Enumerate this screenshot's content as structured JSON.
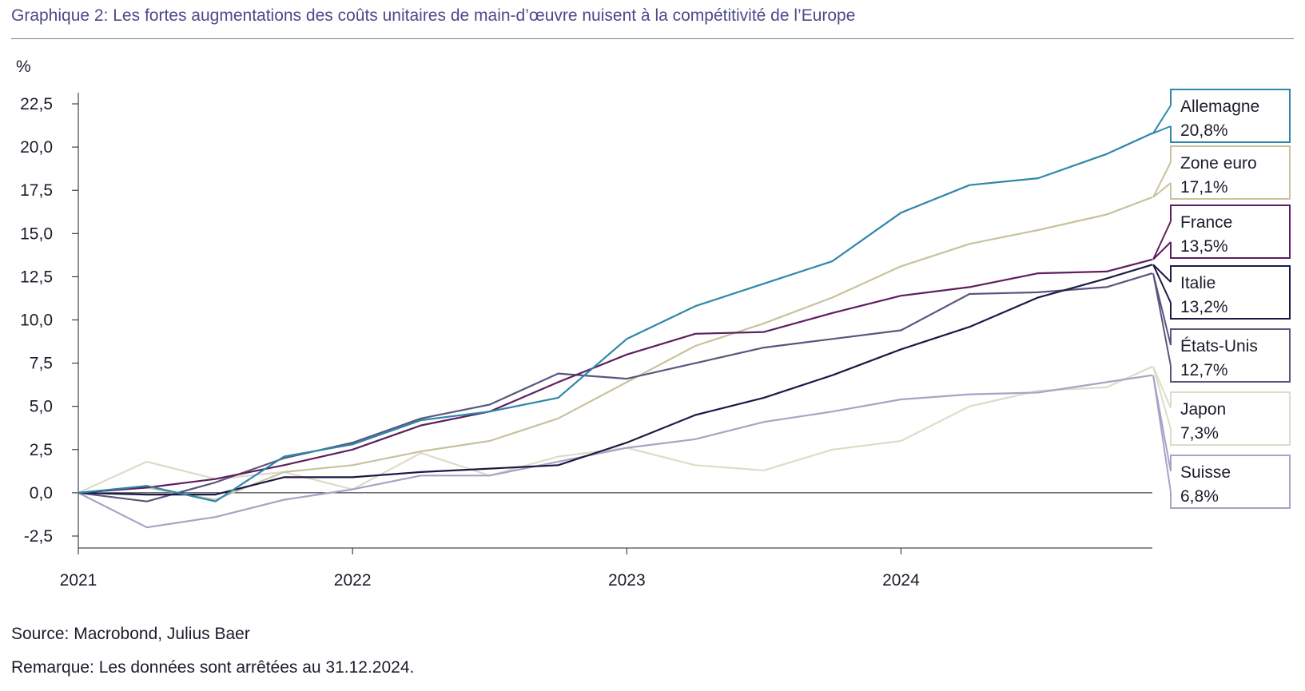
{
  "title": "Graphique 2: Les fortes augmentations des coûts unitaires de main-d’œuvre nuisent à la compétitivité de l’Europe",
  "footer": {
    "source": "Source: Macrobond, Julius Baer",
    "note": "Remarque: Les données sont arrêtées au 31.12.2024."
  },
  "chart_data": {
    "type": "line",
    "ylabel": "%",
    "ylim": [
      -2.5,
      22.5
    ],
    "yticks": [
      "22,5",
      "20,0",
      "17,5",
      "15,0",
      "12,5",
      "10,0",
      "7,5",
      "5,0",
      "2,5",
      "0,0",
      "-2,5"
    ],
    "ytick_values": [
      22.5,
      20.0,
      17.5,
      15.0,
      12.5,
      10.0,
      7.5,
      5.0,
      2.5,
      0.0,
      -2.5
    ],
    "xticks": [
      "2021",
      "2022",
      "2023",
      "2024"
    ],
    "x": [
      "2021-01",
      "2021-04",
      "2021-07",
      "2021-10",
      "2022-01",
      "2022-04",
      "2022-07",
      "2022-10",
      "2023-01",
      "2023-04",
      "2023-07",
      "2023-10",
      "2024-01",
      "2024-04",
      "2024-07",
      "2024-10",
      "2024-12"
    ],
    "grid": false,
    "series": [
      {
        "name": "Allemagne",
        "end_label": "20,8%",
        "color": "#2f86aa",
        "values": [
          0.0,
          0.4,
          -0.5,
          2.1,
          2.8,
          4.2,
          4.7,
          5.5,
          8.9,
          10.8,
          12.1,
          13.4,
          16.2,
          17.8,
          18.2,
          19.6,
          20.8
        ]
      },
      {
        "name": "Zone euro",
        "end_label": "17,1%",
        "color": "#c9c29e",
        "values": [
          0.0,
          0.3,
          -0.4,
          1.2,
          1.6,
          2.4,
          3.0,
          4.3,
          6.4,
          8.5,
          9.8,
          11.3,
          13.1,
          14.4,
          15.2,
          16.1,
          17.1
        ]
      },
      {
        "name": "France",
        "end_label": "13,5%",
        "color": "#5e1e5f",
        "values": [
          0.0,
          0.3,
          0.8,
          1.6,
          2.5,
          3.9,
          4.7,
          6.4,
          8.0,
          9.2,
          9.3,
          10.4,
          11.4,
          11.9,
          12.7,
          12.8,
          13.5
        ]
      },
      {
        "name": "Italie",
        "end_label": "13,2%",
        "color": "#1c1a45",
        "values": [
          0.0,
          -0.1,
          -0.1,
          0.9,
          0.9,
          1.2,
          1.4,
          1.6,
          2.9,
          4.5,
          5.5,
          6.8,
          8.3,
          9.6,
          11.3,
          12.4,
          13.2
        ]
      },
      {
        "name": "États-Unis",
        "end_label": "12,7%",
        "color": "#5a567e",
        "values": [
          0.0,
          -0.5,
          0.6,
          2.0,
          2.9,
          4.3,
          5.1,
          6.9,
          6.6,
          7.5,
          8.4,
          8.9,
          9.4,
          11.5,
          11.6,
          11.9,
          12.7
        ]
      },
      {
        "name": "Japon",
        "end_label": "7,3%",
        "color": "#dddcc8",
        "values": [
          0.0,
          1.8,
          0.8,
          1.2,
          0.2,
          2.3,
          1.0,
          2.1,
          2.6,
          1.6,
          1.3,
          2.5,
          3.0,
          5.0,
          5.9,
          6.1,
          7.3
        ]
      },
      {
        "name": "Suisse",
        "end_label": "6,8%",
        "color": "#a6a4c4",
        "values": [
          0.0,
          -2.0,
          -1.4,
          -0.4,
          0.2,
          1.0,
          1.0,
          1.8,
          2.6,
          3.1,
          4.1,
          4.7,
          5.4,
          5.7,
          5.8,
          6.4,
          6.8
        ]
      }
    ]
  }
}
